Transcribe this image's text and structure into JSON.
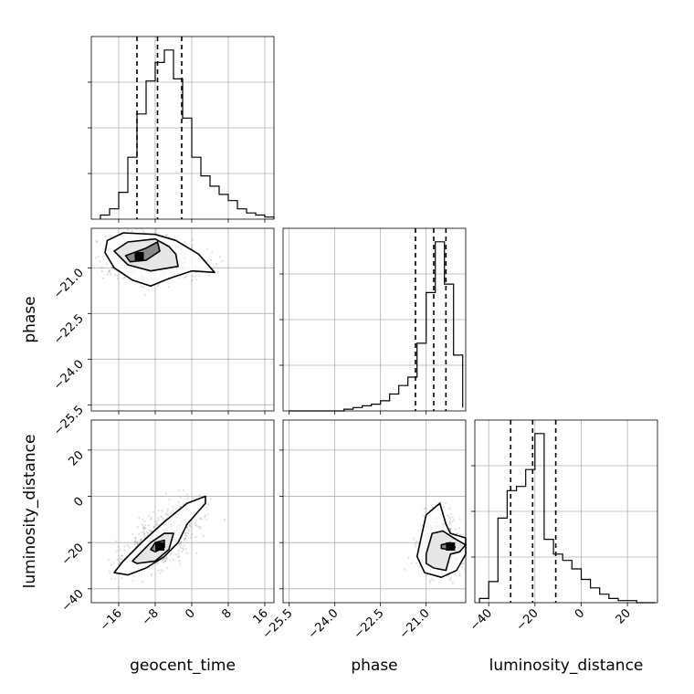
{
  "chart_data": {
    "type": "corner",
    "parameters": [
      "geocent_time",
      "phase",
      "luminosity_distance"
    ],
    "axis_ranges": {
      "geocent_time": [
        -22,
        18
      ],
      "phase": [
        -25.7,
        -19.7
      ],
      "luminosity_distance": [
        -46,
        33
      ]
    },
    "ticks": {
      "geocent_time": [
        "−16",
        "−8",
        "0",
        "8",
        "16"
      ],
      "phase": [
        "−25.5",
        "−24.0",
        "−22.5",
        "−21.0"
      ],
      "luminosity_distance": [
        "−40",
        "−20",
        "0",
        "20"
      ]
    },
    "grid": true,
    "quantiles": {
      "geocent_time": [
        -12.0,
        -7.5,
        -2.2
      ],
      "phase": [
        -21.35,
        -20.75,
        -20.35
      ],
      "luminosity_distance": [
        -30.5,
        -21.0,
        -11.0
      ]
    },
    "histograms": {
      "geocent_time": {
        "bins": [
          -20,
          -18,
          -16,
          -14,
          -12,
          -10,
          -8,
          -6,
          -4,
          -2,
          0,
          2,
          4,
          6,
          8,
          10,
          12,
          14,
          16,
          18
        ],
        "counts": [
          2,
          5,
          13,
          30,
          51,
          67,
          76,
          82,
          68,
          49,
          30,
          21,
          16,
          12,
          9,
          5,
          3,
          2,
          1
        ]
      },
      "phase": {
        "bins": [
          -25.5,
          -25.2,
          -24.9,
          -24.6,
          -24.3,
          -24.0,
          -23.7,
          -23.4,
          -23.1,
          -22.8,
          -22.5,
          -22.2,
          -21.9,
          -21.6,
          -21.3,
          -21.0,
          -20.7,
          -20.4,
          -20.1,
          -19.8
        ],
        "counts": [
          0,
          0,
          0,
          0,
          0,
          0,
          1,
          2,
          3,
          4,
          6,
          10,
          15,
          20,
          40,
          70,
          100,
          75,
          33,
          2
        ]
      },
      "luminosity_distance": {
        "bins": [
          -44,
          -40,
          -36,
          -32,
          -28,
          -24,
          -20,
          -16,
          -12,
          -8,
          -4,
          0,
          4,
          8,
          12,
          16,
          20,
          24,
          28,
          32
        ],
        "counts": [
          2,
          10,
          40,
          53,
          55,
          63,
          80,
          30,
          23,
          20,
          16,
          11,
          7,
          4,
          2,
          1,
          1,
          0,
          0
        ]
      }
    },
    "contours_2d": [
      {
        "x": "geocent_time",
        "y": "phase",
        "outer": [
          [
            -19,
            -20.5
          ],
          [
            -18.5,
            -20.1
          ],
          [
            -15,
            -19.85
          ],
          [
            -8,
            -19.9
          ],
          [
            -3.5,
            -20.1
          ],
          [
            1.5,
            -20.55
          ],
          [
            5,
            -21.15
          ],
          [
            0,
            -21.1
          ],
          [
            -5,
            -21.35
          ],
          [
            -9,
            -21.6
          ],
          [
            -13,
            -21.4
          ],
          [
            -17,
            -21.0
          ]
        ],
        "middle": [
          [
            -17,
            -20.45
          ],
          [
            -14,
            -20.15
          ],
          [
            -8,
            -20.05
          ],
          [
            -5,
            -20.3
          ],
          [
            -3.5,
            -20.55
          ],
          [
            -3,
            -20.95
          ],
          [
            -9,
            -21.1
          ],
          [
            -14,
            -20.9
          ]
        ],
        "inner": [
          [
            -14.5,
            -20.6
          ],
          [
            -10,
            -20.35
          ],
          [
            -7.5,
            -20.15
          ],
          [
            -7,
            -20.45
          ],
          [
            -10,
            -20.75
          ],
          [
            -13.5,
            -20.8
          ]
        ]
      },
      {
        "x": "geocent_time",
        "y": "luminosity_distance",
        "outer": [
          [
            -17,
            -33
          ],
          [
            -15,
            -28
          ],
          [
            -11,
            -20
          ],
          [
            -6,
            -11
          ],
          [
            -1,
            -3
          ],
          [
            3,
            0
          ],
          [
            3,
            -3
          ],
          [
            -1,
            -12
          ],
          [
            -3,
            -20
          ],
          [
            -6,
            -26
          ],
          [
            -10,
            -31
          ],
          [
            -14,
            -34
          ]
        ],
        "middle": [
          [
            -13,
            -28
          ],
          [
            -9,
            -20
          ],
          [
            -6,
            -16
          ],
          [
            -4,
            -16
          ],
          [
            -5,
            -23
          ],
          [
            -8,
            -28
          ],
          [
            -12,
            -29
          ]
        ],
        "inner": [
          [
            -9,
            -23
          ],
          [
            -8,
            -20
          ],
          [
            -6,
            -19
          ],
          [
            -6,
            -22
          ],
          [
            -8,
            -24
          ]
        ]
      },
      {
        "x": "phase",
        "y": "luminosity_distance",
        "outer": [
          [
            -21.2,
            -20
          ],
          [
            -21.0,
            -8
          ],
          [
            -20.55,
            -3
          ],
          [
            -20.35,
            -12
          ],
          [
            -20.2,
            -16
          ],
          [
            -19.7,
            -18
          ],
          [
            -19.7,
            -25
          ],
          [
            -20.0,
            -32
          ],
          [
            -20.5,
            -35
          ],
          [
            -21.05,
            -33
          ],
          [
            -21.3,
            -26
          ]
        ],
        "middle": [
          [
            -21.0,
            -25
          ],
          [
            -20.8,
            -16
          ],
          [
            -20.45,
            -15
          ],
          [
            -20.1,
            -18
          ],
          [
            -19.7,
            -21
          ],
          [
            -19.9,
            -24
          ],
          [
            -20.2,
            -25
          ],
          [
            -20.35,
            -32
          ],
          [
            -20.75,
            -31
          ],
          [
            -21.0,
            -29
          ]
        ],
        "inner": [
          [
            -20.5,
            -21
          ],
          [
            -20.2,
            -20
          ],
          [
            -20.05,
            -22
          ],
          [
            -20.3,
            -23
          ],
          [
            -20.5,
            -22.5
          ]
        ]
      }
    ],
    "density_peaks": [
      {
        "x": "geocent_time",
        "y": "phase",
        "x_value": -11.5,
        "y_value": -20.6
      },
      {
        "x": "geocent_time",
        "y": "luminosity_distance",
        "x_value": -7.0,
        "y_value": -21.5
      },
      {
        "x": "phase",
        "y": "luminosity_distance",
        "x_value": -20.2,
        "y_value": -21.5
      }
    ]
  }
}
